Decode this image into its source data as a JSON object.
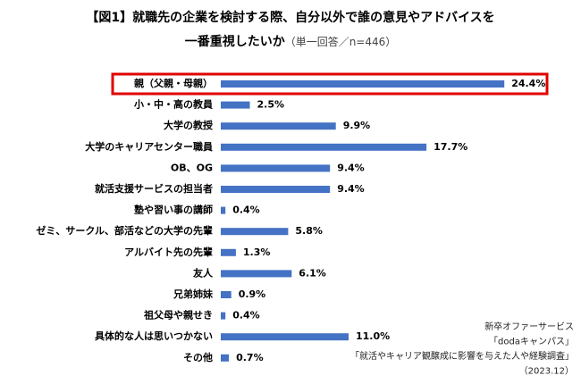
{
  "chart_data": {
    "type": "bar",
    "orientation": "horizontal",
    "title": [
      "【図1】就職先の企業を検討する際、自分以外で誰の意見やアドバイスを",
      "一番重視したいか"
    ],
    "subtitle": "（単一回答／n=446）",
    "categories": [
      "親（父親・母親）",
      "小・中・高の教員",
      "大学の教授",
      "大学のキャリアセンター職員",
      "OB、OG",
      "就活支援サービスの担当者",
      "塾や習い事の講師",
      "ゼミ、サークル、部活などの大学の先輩",
      "アルバイト先の先輩",
      "友人",
      "兄弟姉妹",
      "祖父母や親せき",
      "具体的な人は思いつかない",
      "その他"
    ],
    "values": [
      24.4,
      2.5,
      9.9,
      17.7,
      9.4,
      9.4,
      0.4,
      5.8,
      1.3,
      6.1,
      0.9,
      0.4,
      11.0,
      0.7
    ],
    "value_labels": [
      "24.4%",
      "2.5%",
      "9.9%",
      "17.7%",
      "9.4%",
      "9.4%",
      "0.4%",
      "5.8%",
      "1.3%",
      "6.1%",
      "0.9%",
      "0.4%",
      "11.0%",
      "0.7%"
    ],
    "color": "#4472c4",
    "source": [
      "新卒オファーサービス",
      "「dodaキャンパス」",
      "「就活やキャリア観醸成に影響を与えた人や経験調査」",
      "（2023.12）"
    ]
  }
}
